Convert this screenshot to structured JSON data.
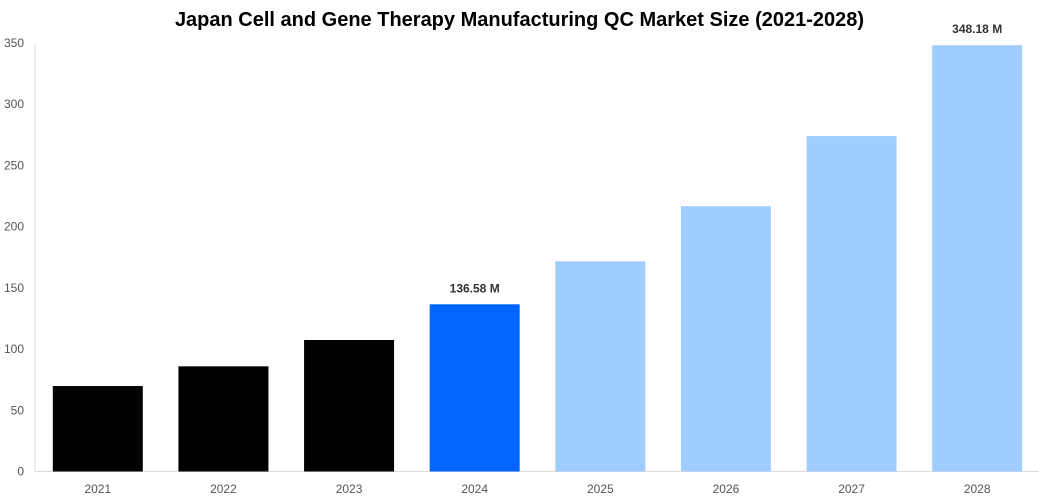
{
  "chart_data": {
    "type": "bar",
    "title": "Japan Cell and Gene Therapy Manufacturing QC Market Size (2021-2028)",
    "xlabel": "",
    "ylabel": "",
    "categories": [
      "2021",
      "2022",
      "2023",
      "2024",
      "2025",
      "2026",
      "2027",
      "2028"
    ],
    "values": [
      69.8,
      85.9,
      107.4,
      136.58,
      171.7,
      216.7,
      274.0,
      348.18
    ],
    "colors": [
      "#000000",
      "#000000",
      "#000000",
      "#0066ff",
      "#a0cdff",
      "#a0cdff",
      "#a0cdff",
      "#a0cdff"
    ],
    "data_labels": {
      "3": "136.58 M",
      "7": "348.18 M"
    },
    "ylim": [
      0,
      350
    ],
    "yticks": [
      0,
      50,
      100,
      150,
      200,
      250,
      300,
      350
    ],
    "grid": false,
    "legend": "none"
  }
}
